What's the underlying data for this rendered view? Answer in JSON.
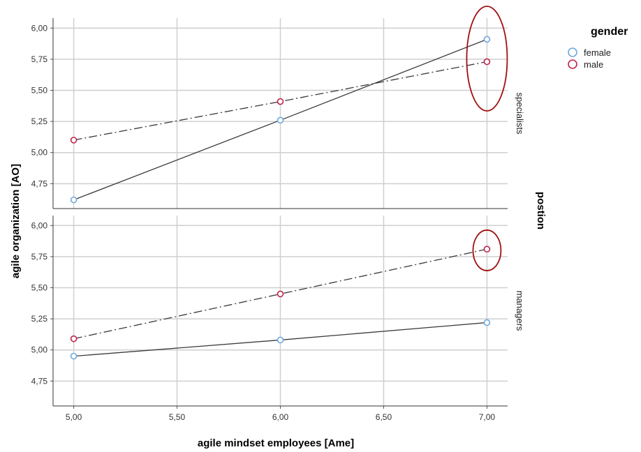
{
  "chart_data": {
    "type": "line",
    "xlabel": "agile mindset employees [Ame]",
    "ylabel": "agile organization [AO]",
    "facet_title": "postion",
    "xlim": [
      4.9,
      7.1
    ],
    "x_ticks": [
      "5,00",
      "5,50",
      "6,00",
      "6,50",
      "7,00"
    ],
    "x_tick_values": [
      5.0,
      5.5,
      6.0,
      6.5,
      7.0
    ],
    "y_ticks": [
      "4,75",
      "5,00",
      "5,25",
      "5,50",
      "5,75",
      "6,00"
    ],
    "y_tick_values": [
      4.75,
      5.0,
      5.25,
      5.5,
      5.75,
      6.0
    ],
    "legend": {
      "title": "gender",
      "items": [
        {
          "label": "female",
          "color": "#6fa8dc"
        },
        {
          "label": "male",
          "color": "#c0234a"
        }
      ]
    },
    "panels": [
      {
        "name": "specialists",
        "ylim": [
          4.55,
          6.08
        ],
        "x": [
          5.0,
          6.0,
          7.0
        ],
        "series": [
          {
            "name": "female",
            "values": [
              4.62,
              5.26,
              5.91
            ],
            "line_style": "solid",
            "color": "#6fa8dc"
          },
          {
            "name": "male",
            "values": [
              5.1,
              5.41,
              5.73
            ],
            "line_style": "dash-dot",
            "color": "#c0234a"
          }
        ],
        "annotation": {
          "type": "ellipse",
          "x": 7.0,
          "y": 5.78,
          "color": "#a01010"
        }
      },
      {
        "name": "managers",
        "ylim": [
          4.55,
          6.08
        ],
        "x": [
          5.0,
          6.0,
          7.0
        ],
        "series": [
          {
            "name": "female",
            "values": [
              4.95,
              5.08,
              5.22
            ],
            "line_style": "solid",
            "color": "#6fa8dc"
          },
          {
            "name": "male",
            "values": [
              5.09,
              5.45,
              5.81
            ],
            "line_style": "dash-dot",
            "color": "#c0234a"
          }
        ],
        "annotation": {
          "type": "ellipse",
          "x": 7.0,
          "y": 5.8,
          "color": "#a01010"
        }
      }
    ]
  }
}
